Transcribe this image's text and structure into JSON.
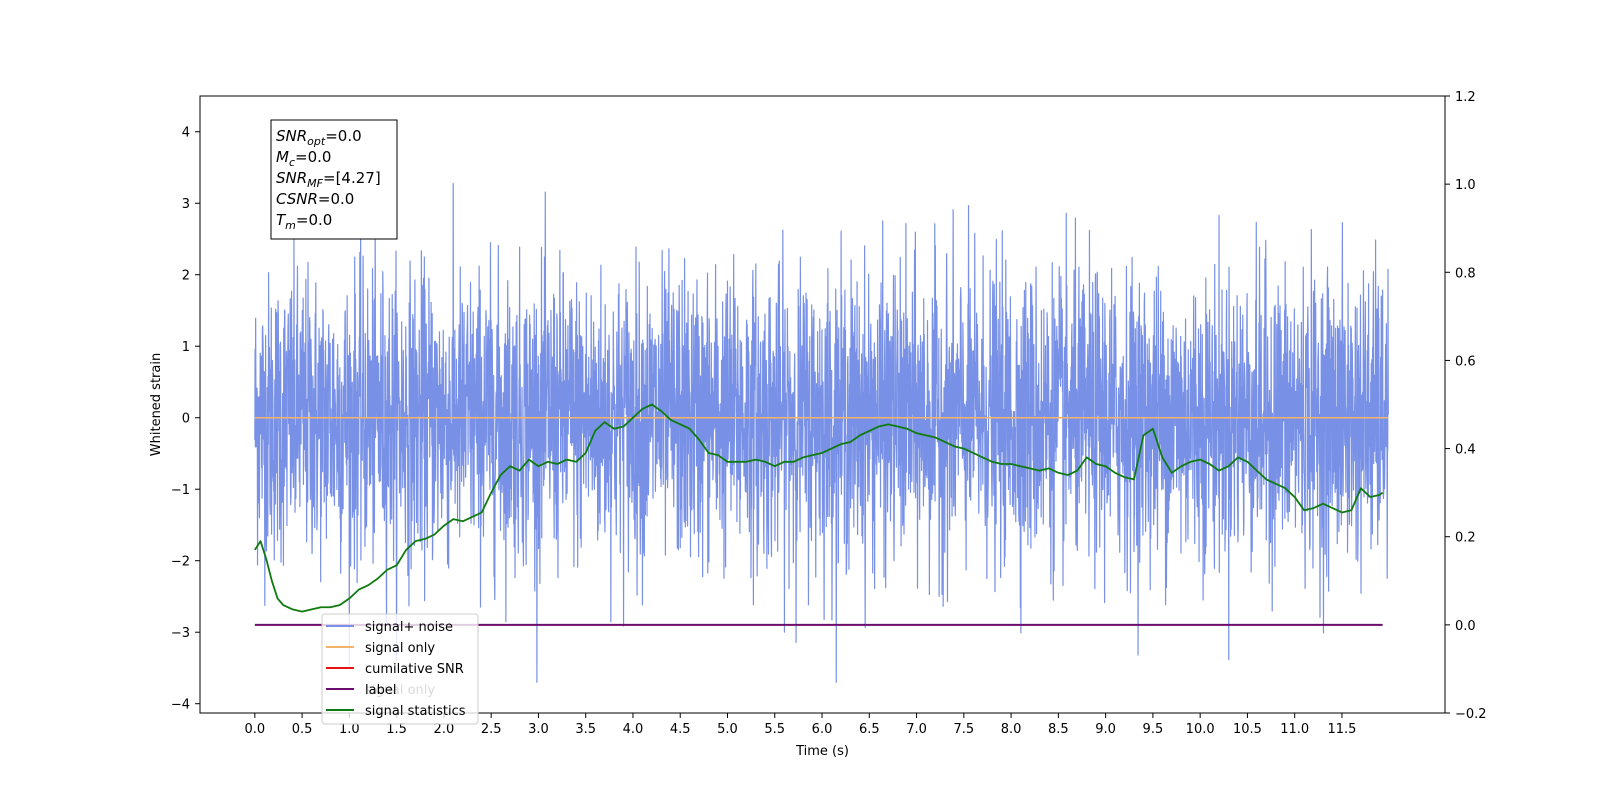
{
  "chart_data": {
    "type": "line",
    "xlabel": "Time (s)",
    "ylabel": "Whitened strain",
    "xlim": [
      -0.58,
      12.59
    ],
    "ylim": [
      -4.13,
      4.5
    ],
    "y2lim": [
      -0.2,
      1.2
    ],
    "x_ticks": [
      0.0,
      0.5,
      1.0,
      1.5,
      2.0,
      2.5,
      3.0,
      3.5,
      4.0,
      4.5,
      5.0,
      5.5,
      6.0,
      6.5,
      7.0,
      7.5,
      8.0,
      8.5,
      9.0,
      9.5,
      10.0,
      10.5,
      11.0,
      11.5
    ],
    "x_tick_labels": [
      "0.0",
      "0.5",
      "1.0",
      "1.5",
      "2.0",
      "2.5",
      "3.0",
      "3.5",
      "4.0",
      "4.5",
      "5.0",
      "5.5",
      "6.0",
      "6.5",
      "7.0",
      "7.5",
      "8.0",
      "8.5",
      "9.0",
      "9.5",
      "10.0",
      "10.5",
      "11.0",
      "11.5"
    ],
    "y_ticks": [
      4,
      3,
      2,
      1,
      0,
      -1,
      -2,
      -3,
      -4
    ],
    "y_tick_labels": [
      "4",
      "3",
      "2",
      "1",
      "0",
      "−1",
      "−2",
      "−3",
      "−4"
    ],
    "y2_ticks": [
      1.2,
      1.0,
      0.8,
      0.6,
      0.4,
      0.2,
      0.0,
      -0.2
    ],
    "y2_tick_labels": [
      "1.2",
      "1.0",
      "0.8",
      "0.6",
      "0.4",
      "0.2",
      "0.0",
      "−0.2"
    ],
    "grid": false,
    "noise": {
      "name": "signal+ noise",
      "color": "#7891e6",
      "x_start": 0.0,
      "x_end": 11.99,
      "approx_mean": 0.0,
      "approx_std": 1.0,
      "approx_range": [
        -3.7,
        4.1
      ]
    },
    "signal_only": {
      "name": "signal only",
      "color": "#f5b26b",
      "x": [
        0.0,
        11.99
      ],
      "y": [
        0.0,
        0.0
      ]
    },
    "label_line": {
      "name": "label",
      "color": "#6a0d6e",
      "axis": "right",
      "x": [
        0.0,
        11.93
      ],
      "y": [
        0.0,
        0.0
      ]
    },
    "signal_statistics": {
      "name": "signal statistics",
      "color": "#0f7b0f",
      "axis": "right",
      "x": [
        0.0,
        0.06,
        0.12,
        0.18,
        0.24,
        0.3,
        0.4,
        0.5,
        0.6,
        0.7,
        0.8,
        0.9,
        1.0,
        1.1,
        1.2,
        1.3,
        1.4,
        1.5,
        1.6,
        1.7,
        1.8,
        1.9,
        2.0,
        2.1,
        2.2,
        2.3,
        2.4,
        2.5,
        2.6,
        2.7,
        2.8,
        2.9,
        3.0,
        3.1,
        3.2,
        3.3,
        3.4,
        3.5,
        3.6,
        3.7,
        3.8,
        3.9,
        4.0,
        4.1,
        4.2,
        4.3,
        4.4,
        4.5,
        4.6,
        4.7,
        4.8,
        4.9,
        5.0,
        5.1,
        5.2,
        5.3,
        5.4,
        5.5,
        5.6,
        5.7,
        5.8,
        5.9,
        6.0,
        6.1,
        6.2,
        6.3,
        6.4,
        6.5,
        6.6,
        6.7,
        6.8,
        6.9,
        7.0,
        7.1,
        7.2,
        7.3,
        7.4,
        7.5,
        7.6,
        7.7,
        7.8,
        7.9,
        8.0,
        8.1,
        8.2,
        8.3,
        8.4,
        8.5,
        8.6,
        8.7,
        8.8,
        8.9,
        9.0,
        9.1,
        9.2,
        9.3,
        9.4,
        9.5,
        9.6,
        9.7,
        9.8,
        9.9,
        10.0,
        10.1,
        10.2,
        10.3,
        10.4,
        10.5,
        10.6,
        10.7,
        10.8,
        10.9,
        11.0,
        11.1,
        11.2,
        11.3,
        11.4,
        11.5,
        11.6,
        11.7,
        11.8,
        11.9,
        11.93
      ],
      "y": [
        0.17,
        0.19,
        0.15,
        0.1,
        0.06,
        0.045,
        0.035,
        0.03,
        0.035,
        0.04,
        0.04,
        0.045,
        0.06,
        0.08,
        0.09,
        0.105,
        0.125,
        0.135,
        0.17,
        0.19,
        0.195,
        0.205,
        0.225,
        0.24,
        0.235,
        0.245,
        0.255,
        0.3,
        0.34,
        0.36,
        0.35,
        0.375,
        0.36,
        0.37,
        0.365,
        0.375,
        0.37,
        0.39,
        0.44,
        0.46,
        0.445,
        0.45,
        0.47,
        0.49,
        0.5,
        0.485,
        0.465,
        0.455,
        0.445,
        0.42,
        0.39,
        0.385,
        0.37,
        0.37,
        0.37,
        0.375,
        0.37,
        0.36,
        0.37,
        0.37,
        0.38,
        0.385,
        0.39,
        0.4,
        0.41,
        0.415,
        0.43,
        0.44,
        0.45,
        0.455,
        0.45,
        0.445,
        0.435,
        0.43,
        0.425,
        0.415,
        0.405,
        0.4,
        0.39,
        0.38,
        0.37,
        0.365,
        0.365,
        0.36,
        0.355,
        0.35,
        0.355,
        0.345,
        0.34,
        0.35,
        0.38,
        0.365,
        0.36,
        0.345,
        0.335,
        0.33,
        0.43,
        0.445,
        0.38,
        0.345,
        0.36,
        0.37,
        0.375,
        0.365,
        0.35,
        0.36,
        0.38,
        0.37,
        0.35,
        0.33,
        0.32,
        0.31,
        0.29,
        0.26,
        0.265,
        0.275,
        0.265,
        0.255,
        0.26,
        0.31,
        0.29,
        0.295,
        0.3
      ]
    },
    "annotation": [
      {
        "base": "SNR",
        "sub": "opt",
        "value": "=0.0"
      },
      {
        "base": "M",
        "sub": "c",
        "value": "=0.0"
      },
      {
        "base": "SNR",
        "sub": "MF",
        "value": "=[4.27]"
      },
      {
        "base": "CSNR",
        "sub": "",
        "value": "=0.0"
      },
      {
        "base": "T",
        "sub": "m",
        "value": "=0.0"
      }
    ],
    "legend": {
      "placement": "lower-left",
      "entries": [
        {
          "label": "signal+ noise",
          "color": "#7891e6"
        },
        {
          "label": "signal only",
          "color": "#f5b26b"
        },
        {
          "label": "cumilative SNR",
          "color": "#e8120f"
        },
        {
          "label": "label",
          "color": "#6a0d6e"
        },
        {
          "label": "signal statistics",
          "color": "#0f7b0f"
        }
      ],
      "hidden_text_behind": [
        {
          "label": "signal only"
        }
      ]
    }
  }
}
